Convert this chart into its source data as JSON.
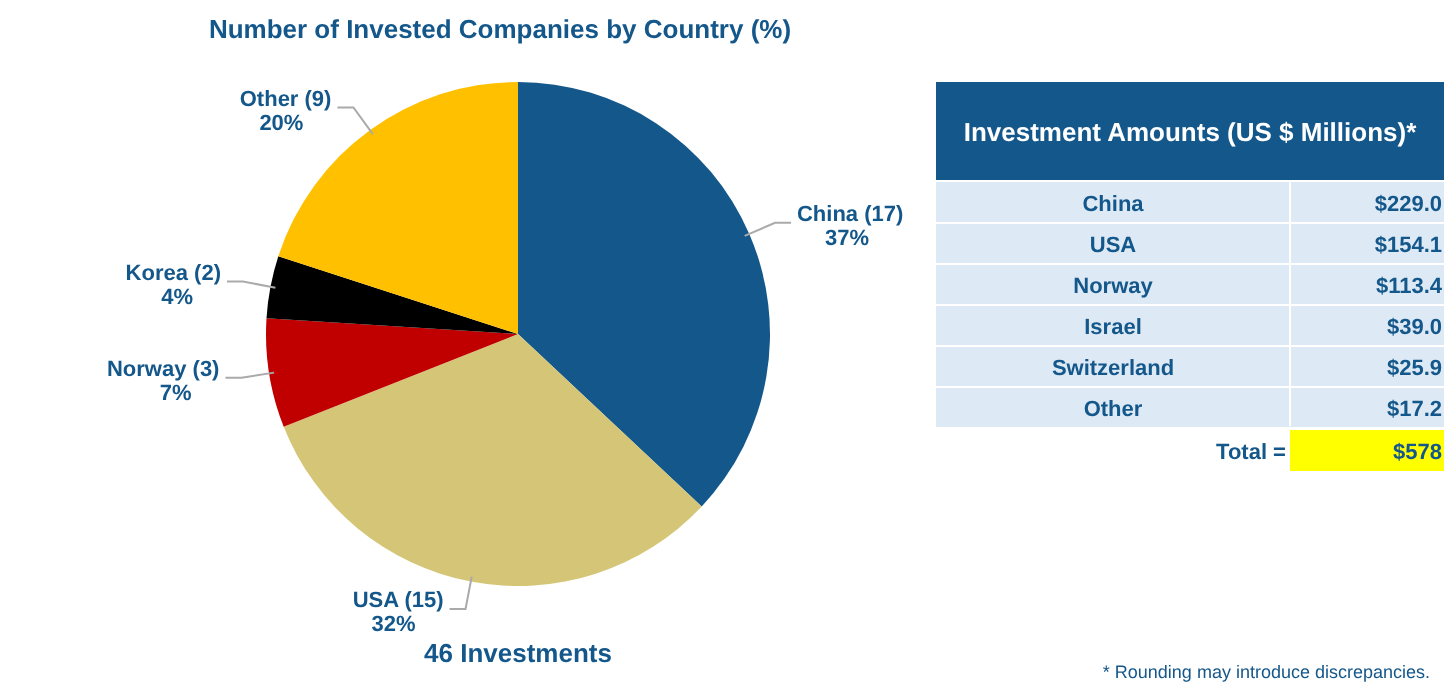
{
  "chart_data": [
    {
      "type": "pie",
      "title": "Number of Invested Companies by Country (%)",
      "categories": [
        "China (17)",
        "USA (15)",
        "Norway (3)",
        "Korea (2)",
        "Other (9)"
      ],
      "values": [
        37,
        32,
        7,
        4,
        20
      ],
      "value_labels": [
        "37%",
        "32%",
        "7%",
        "4%",
        "20%"
      ],
      "colors": [
        "#14578a",
        "#d5c677",
        "#c00000",
        "#000000",
        "#ffc000"
      ],
      "annotations": [
        "46 Investments"
      ]
    },
    {
      "type": "other",
      "title": "Investment Amounts (US $ Millions)*",
      "categories": [
        "China",
        "USA",
        "Norway",
        "Israel",
        "Switzerland",
        "Other"
      ],
      "value_labels": [
        "$229.0",
        "$154.1",
        "$113.4",
        "$39.0",
        "$25.9",
        "$17.2"
      ],
      "totals": [
        "$578"
      ],
      "annotations": [
        "Total =",
        "* Rounding may introduce discrepancies."
      ]
    }
  ]
}
